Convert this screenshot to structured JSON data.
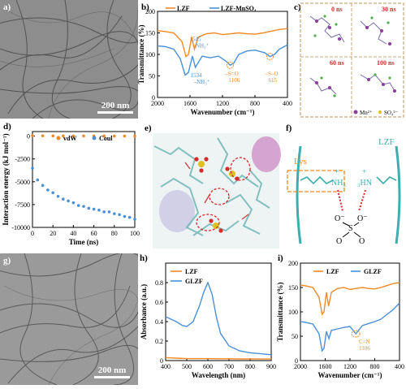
{
  "panels": {
    "a": {
      "label": "a)",
      "scale_bar": "200 nm"
    },
    "b": {
      "label": "b)"
    },
    "c": {
      "label": "c)",
      "times": [
        "0 ns",
        "30 ns",
        "60 ns",
        "100 ns"
      ],
      "legend_mn": "Mn²⁺",
      "legend_so4": "SO₄²⁻"
    },
    "d": {
      "label": "d)"
    },
    "e": {
      "label": "e)"
    },
    "f": {
      "label": "f)",
      "lys": "Lys",
      "lzf": "LZF",
      "nh3_left": "NH₃",
      "nh3_right": "₃HN",
      "plus": "+",
      "o_minus_left": "O⁻",
      "o_minus_right": "O⁻",
      "s": "S",
      "o_top": "O",
      "o_bottom": "O"
    },
    "g": {
      "label": "g)",
      "scale_bar": "200 nm"
    },
    "h": {
      "label": "h)"
    },
    "i": {
      "label": "i)"
    }
  },
  "colors": {
    "orange": "#F08A24",
    "blue": "#4A90D9",
    "teal": "#3BAFB0",
    "red": "#D8262A",
    "tan": "#C9A77A"
  },
  "chart_data": [
    {
      "id": "b",
      "type": "line",
      "title": "",
      "xlabel": "Wavenumber (cm⁻¹)",
      "ylabel": "Transmittance (%)",
      "xlim": [
        2000,
        400
      ],
      "ylim": [
        0,
        200
      ],
      "xticks": [
        400,
        800,
        1200,
        1600,
        2000
      ],
      "yticks": [
        0,
        50,
        100,
        150,
        200
      ],
      "x_axis_direction": "as printed",
      "series": [
        {
          "name": "LZF",
          "color": "#F08A24",
          "points": [
            [
              400,
              160
            ],
            [
              500,
              158
            ],
            [
              600,
              154
            ],
            [
              700,
              150
            ],
            [
              800,
              147
            ],
            [
              900,
              148
            ],
            [
              1000,
              150
            ],
            [
              1100,
              148
            ],
            [
              1200,
              146
            ],
            [
              1300,
              150
            ],
            [
              1400,
              148
            ],
            [
              1500,
              140
            ],
            [
              1545,
              112
            ],
            [
              1580,
              140
            ],
            [
              1620,
              100
            ],
            [
              1650,
              95
            ],
            [
              1700,
              130
            ],
            [
              1800,
              150
            ],
            [
              1900,
              153
            ],
            [
              2000,
              155
            ]
          ]
        },
        {
          "name": "LZF-MnSO₄",
          "color": "#4A90D9",
          "points": [
            [
              400,
              122
            ],
            [
              500,
              112
            ],
            [
              560,
              100
            ],
            [
              615,
              95
            ],
            [
              680,
              104
            ],
            [
              800,
              110
            ],
            [
              900,
              108
            ],
            [
              1000,
              100
            ],
            [
              1060,
              80
            ],
            [
              1106,
              75
            ],
            [
              1160,
              85
            ],
            [
              1250,
              96
            ],
            [
              1350,
              92
            ],
            [
              1450,
              96
            ],
            [
              1534,
              70
            ],
            [
              1570,
              96
            ],
            [
              1620,
              58
            ],
            [
              1660,
              52
            ],
            [
              1720,
              90
            ],
            [
              1800,
              112
            ],
            [
              1900,
              118
            ],
            [
              2000,
              120
            ]
          ]
        }
      ],
      "annotations": [
        {
          "text": "–S–O",
          "sub": "615"
        },
        {
          "text": "–S=O",
          "sub": "1106"
        },
        {
          "text": "1534",
          "sub": "–NH₃⁺"
        },
        {
          "text": "1545",
          "sub": "–NH₂⁺"
        }
      ]
    },
    {
      "id": "d",
      "type": "scatter",
      "title": "",
      "xlabel": "Time (ns)",
      "ylabel": "Interaction energy (kJ mol⁻¹)",
      "xlim": [
        0,
        100
      ],
      "ylim": [
        -10000,
        500
      ],
      "xticks": [
        0,
        20,
        40,
        60,
        80,
        100
      ],
      "yticks": [
        0,
        -2500,
        -5000,
        -7500,
        -10000
      ],
      "series": [
        {
          "name": "vdW",
          "color": "#F08A24",
          "x": [
            0,
            10,
            20,
            30,
            40,
            50,
            60,
            70,
            80,
            90,
            100
          ],
          "y": [
            50,
            40,
            30,
            25,
            20,
            20,
            15,
            15,
            10,
            10,
            10
          ]
        },
        {
          "name": "Coul",
          "color": "#4A90D9",
          "x": [
            0,
            5,
            10,
            15,
            20,
            25,
            30,
            35,
            40,
            45,
            50,
            55,
            60,
            65,
            70,
            75,
            80,
            85,
            90,
            95,
            100
          ],
          "y": [
            -3500,
            -4800,
            -5400,
            -5900,
            -6200,
            -6600,
            -6900,
            -7100,
            -7300,
            -7600,
            -7700,
            -7900,
            -8000,
            -8100,
            -8300,
            -8300,
            -8500,
            -8600,
            -8800,
            -8900,
            -9100
          ]
        }
      ],
      "legend": "top-center"
    },
    {
      "id": "h",
      "type": "line",
      "title": "",
      "xlabel": "Wavelength (nm)",
      "ylabel": "Absorbance (a.u.)",
      "xlim": [
        400,
        900
      ],
      "ylim": [
        0,
        1.0
      ],
      "xticks": [
        400,
        500,
        600,
        700,
        800,
        900
      ],
      "yticks": [
        0.0,
        0.2,
        0.4,
        0.6,
        0.8
      ],
      "series": [
        {
          "name": "LZF",
          "color": "#F08A24",
          "x": [
            400,
            450,
            500,
            550,
            600,
            650,
            700,
            750,
            800,
            850,
            900
          ],
          "y": [
            0.03,
            0.025,
            0.02,
            0.02,
            0.02,
            0.018,
            0.018,
            0.017,
            0.017,
            0.016,
            0.016
          ]
        },
        {
          "name": "GLZF",
          "color": "#4A90D9",
          "x": [
            400,
            420,
            450,
            480,
            500,
            530,
            560,
            580,
            600,
            620,
            640,
            660,
            700,
            750,
            800,
            850,
            900
          ],
          "y": [
            0.45,
            0.43,
            0.4,
            0.36,
            0.35,
            0.4,
            0.56,
            0.7,
            0.8,
            0.68,
            0.45,
            0.28,
            0.15,
            0.1,
            0.08,
            0.07,
            0.06
          ]
        }
      ],
      "legend": "top-left"
    },
    {
      "id": "i",
      "type": "line",
      "title": "",
      "xlabel": "Wavenumber (cm⁻¹)",
      "ylabel": "Transmittance (%)",
      "xlim": [
        2000,
        400
      ],
      "ylim": [
        0,
        200
      ],
      "xticks": [
        2000,
        1600,
        1200,
        800,
        400
      ],
      "yticks": [
        0,
        50,
        100,
        150,
        200
      ],
      "series": [
        {
          "name": "LZF",
          "color": "#F08A24",
          "x": [
            2000,
            1900,
            1800,
            1700,
            1650,
            1620,
            1580,
            1545,
            1500,
            1400,
            1300,
            1200,
            1100,
            1000,
            900,
            800,
            700,
            600,
            500,
            400
          ],
          "y": [
            155,
            153,
            150,
            130,
            95,
            100,
            140,
            112,
            140,
            148,
            150,
            146,
            148,
            150,
            148,
            147,
            150,
            154,
            158,
            160
          ]
        },
        {
          "name": "GLZF",
          "color": "#4A90D9",
          "x": [
            2000,
            1900,
            1800,
            1700,
            1650,
            1620,
            1580,
            1540,
            1500,
            1400,
            1300,
            1200,
            1106,
            1000,
            900,
            800,
            700,
            600,
            500,
            400
          ],
          "y": [
            80,
            78,
            75,
            55,
            20,
            25,
            60,
            45,
            62,
            65,
            68,
            70,
            55,
            72,
            76,
            80,
            85,
            95,
            105,
            118
          ]
        }
      ],
      "annotations": [
        {
          "text": "C–N",
          "sub": "1106"
        }
      ],
      "legend": "top-center"
    }
  ]
}
